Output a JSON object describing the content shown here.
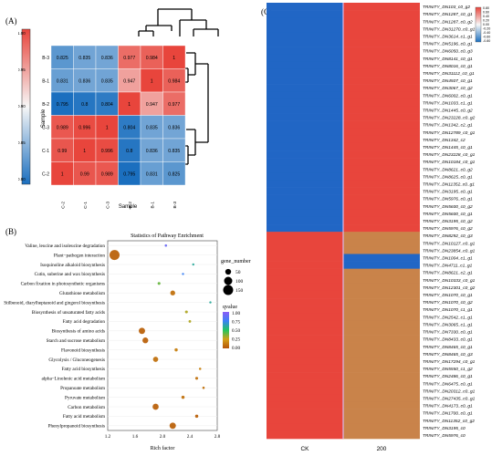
{
  "panels": {
    "a": "(A)",
    "b": "(B)",
    "c": "(C)"
  },
  "heatmap_a": {
    "rows": [
      "B-3",
      "B-1",
      "B-2",
      "C-3",
      "C-1",
      "C-2"
    ],
    "cols": [
      "C-2",
      "C-1",
      "C-3",
      "B-2",
      "B-1",
      "B-3"
    ],
    "values": [
      [
        "0.825",
        "0.835",
        "0.836",
        "0.977",
        "0.984",
        "1"
      ],
      [
        "0.831",
        "0.836",
        "0.835",
        "0.947",
        "1",
        "0.984"
      ],
      [
        "0.795",
        "0.8",
        "0.804",
        "1",
        "0.947",
        "0.977"
      ],
      [
        "0.989",
        "0.996",
        "1",
        "0.804",
        "0.835",
        "0.836"
      ],
      [
        "0.99",
        "1",
        "0.996",
        "0.8",
        "0.836",
        "0.835"
      ],
      [
        "1",
        "0.99",
        "0.989",
        "0.795",
        "0.831",
        "0.825"
      ]
    ],
    "xlabel": "Sample",
    "ylabel": "Sample",
    "colorbar_ticks": [
      "1.00",
      "0.95",
      "0.90",
      "0.85",
      "0.80"
    ],
    "colors": {
      "high": "#e8453c",
      "low": "#1b6fbf",
      "mid": "#f7f7f7"
    }
  },
  "chart_data": [
    {
      "type": "scatter",
      "title": "Statistics of Pathway Enrichment",
      "xlabel": "Rich factor",
      "ylabel": "",
      "xlim": [
        1.2,
        2.8
      ],
      "xticks": [
        "1.2",
        "1.6",
        "2.0",
        "2.4",
        "2.8"
      ],
      "categories": [
        "Valine, leucine and isoleucine degradation",
        "Plant−pathogen interaction",
        "Isoquinoline alkaloid biosynthesis",
        "Cutin, suberine and wax biosynthesis",
        "Carbon fixation in photosynthetic organisms",
        "Glutathione metabolism",
        "Stilbenoid, diarylheptanoid and gingerol biosynthesis",
        "Biosynthesis of unsaturated fatty acids",
        "Fatty acid degradation",
        "Biosynthesis of amino acids",
        "Starch and sucrose metabolism",
        "Flavonoid biosynthesis",
        "Glycolysis / Gluconeogenesis",
        "Fatty acid biosynthesis",
        "alpha−Linolenic acid metabolism",
        "Propanoate metabolism",
        "Pyruvate metabolism",
        "Carbon metabolism",
        "Fatty acid metabolism",
        "Phenylpropanoid biosynthesis"
      ],
      "x": [
        2.05,
        1.3,
        2.45,
        2.3,
        1.95,
        2.15,
        2.7,
        2.35,
        2.4,
        1.7,
        1.75,
        2.2,
        1.9,
        2.55,
        2.5,
        2.6,
        2.3,
        1.9,
        2.5,
        2.15
      ],
      "size": [
        8,
        150,
        5,
        5,
        12,
        35,
        5,
        12,
        10,
        60,
        50,
        15,
        40,
        8,
        12,
        8,
        15,
        55,
        15,
        60
      ],
      "q": [
        0.9,
        0.05,
        0.6,
        0.75,
        0.4,
        0.1,
        0.6,
        0.3,
        0.3,
        0.05,
        0.05,
        0.15,
        0.1,
        0.15,
        0.1,
        0.1,
        0.1,
        0.05,
        0.05,
        0.05
      ],
      "legend_size_title": "gene_number",
      "legend_sizes": [
        "50",
        "100",
        "150"
      ],
      "legend_color_title": "qvalue",
      "legend_color_ticks": [
        "1.00",
        "0.75",
        "0.50",
        "0.25",
        "0.00"
      ]
    },
    {
      "type": "heatmap",
      "columns": [
        "CK",
        "200"
      ],
      "colorbar_ticks": [
        "0.80",
        "0.60",
        "0.40",
        "0.20",
        "0.00",
        "-0.20",
        "-0.40",
        "-0.60",
        "-0.80"
      ],
      "rows": [
        "TRINITY_DN103_c0_g2",
        "TRINITY_DN1287_c0_g1",
        "TRINITY_DN1287_c0_g2",
        "TRINITY_DN31270_c0_g1",
        "TRINITY_DN3614_c1_g1",
        "TRINITY_DN5196_c0_g1",
        "TRINITY_DN6050_c0_g3",
        "TRINITY_DN8141_c0_g1",
        "TRINITY_DN8016_c0_g1",
        "TRINITY_DN31112_c0_g1",
        "TRINITY_DN4507_c0_g1",
        "TRINITY_DN3067_c0_g2",
        "TRINITY_DN6002_c0_g1",
        "TRINITY_DN1033_c1_g1",
        "TRINITY_DN1445_c0_g2",
        "TRINITY_DN23228_c0_g2",
        "TRINITY_DN1342_c2_g1",
        "TRINITY_DN12789_c0_g1",
        "TRINITY_DN1342_c2",
        "TRINITY_DN1445_c0_g1",
        "TRINITY_DN23228_c0_g1",
        "TRINITY_DN10184_c0_g1",
        "TRINITY_DN8621_c0_g2",
        "TRINITY_DN8625_c0_g1",
        "TRINITY_DN11352_c0_g1",
        "TRINITY_DN3195_c0_g1",
        "TRINITY_DN5976_c0_g1",
        "TRINITY_DN5600_c0_g2",
        "TRINITY_DN5600_c0_g1",
        "TRINITY_DN3195_c0_g2",
        "TRINITY_DN5976_c0_g2",
        "TRINITY_DN8292_c0_g3",
        "TRINITY_DN10127_c0_g1",
        "TRINITY_DN23854_c0_g1",
        "TRINITY_DN1004_c1_g1",
        "TRINITY_DN4711_c1_g1",
        "TRINITY_DN8621_c2_g1",
        "TRINITY_DN10333_c0_g1",
        "TRINITY_DN12301_c0_g2",
        "TRINITY_DN1070_c0_g1",
        "TRINITY_DN1070_c0_g2",
        "TRINITY_DN1070_c1_g1",
        "TRINITY_DN2542_c1_g1",
        "TRINITY_DN3065_c1_g1",
        "TRINITY_DN7330_c0_g1",
        "TRINITY_DN8433_c0_g1",
        "TRINITY_DN8465_c0_g1",
        "TRINITY_DN8465_c0_g3",
        "TRINITY_DN17294_c0_g1",
        "TRINITY_DN5550_c1_g2",
        "TRINITY_DN2486_c0_g1",
        "TRINITY_DN6475_c0_g1",
        "TRINITY_DN20312_c0_g1",
        "TRINITY_DN27435_c0_g1",
        "TRINITY_DN4173_c0_g1",
        "TRINITY_DN1700_c0_g1",
        "TRINITY_DN11352_c0_g2",
        "TRINITY_DN3195_c0",
        "TRINITY_DN5976_c0"
      ],
      "pattern": [
        1,
        1,
        1,
        1,
        1,
        1,
        1,
        1,
        1,
        1,
        1,
        1,
        1,
        1,
        1,
        1,
        1,
        1,
        1,
        1,
        1,
        1,
        1,
        1,
        1,
        1,
        1,
        1,
        1,
        1,
        1,
        2,
        2,
        2,
        3,
        3,
        2,
        2,
        2,
        2,
        2,
        2,
        2,
        2,
        2,
        2,
        2,
        2,
        2,
        2,
        2,
        2,
        2,
        2,
        2,
        2,
        2,
        2,
        2
      ]
    }
  ]
}
